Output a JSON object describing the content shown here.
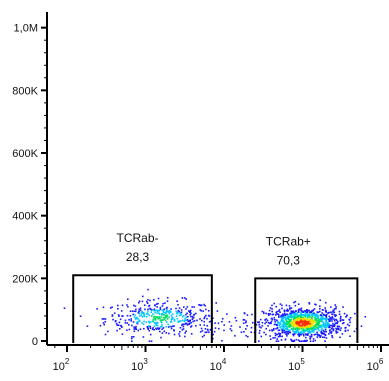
{
  "chart_data": {
    "type": "scatter",
    "title": "",
    "xlabel": "",
    "ylabel": "",
    "x_scale": "log",
    "xlim": [
      100,
      1000000
    ],
    "ylim": [
      0,
      1050000
    ],
    "x_ticks": [
      {
        "value": 100,
        "base": "10",
        "exp": "2"
      },
      {
        "value": 1000,
        "base": "10",
        "exp": "3"
      },
      {
        "value": 10000,
        "base": "10",
        "exp": "4"
      },
      {
        "value": 100000,
        "base": "10",
        "exp": "5"
      },
      {
        "value": 1000000,
        "base": "10",
        "exp": "6"
      }
    ],
    "y_ticks": [
      {
        "value": 0,
        "label": "0"
      },
      {
        "value": 200000,
        "label": "200K"
      },
      {
        "value": 400000,
        "label": "400K"
      },
      {
        "value": 600000,
        "label": "600K"
      },
      {
        "value": 800000,
        "label": "800K"
      },
      {
        "value": 1000000,
        "label": "1,0M"
      }
    ],
    "gates": [
      {
        "name": "TCRab-",
        "percent": "28,3",
        "x_range": [
          120,
          7000
        ],
        "y_range": [
          0,
          210000
        ]
      },
      {
        "name": "TCRab+",
        "percent": "70,3",
        "x_range": [
          25000,
          500000
        ],
        "y_range": [
          0,
          200000
        ]
      }
    ],
    "populations": [
      {
        "x_center": 1500,
        "x_spread_decades": 0.35,
        "y_center": 75000,
        "y_spread": 28000,
        "share": 0.283
      },
      {
        "x_center": 100000,
        "x_spread_decades": 0.25,
        "y_center": 60000,
        "y_spread": 25000,
        "share": 0.703
      }
    ],
    "density_colors": [
      "#1a1aff",
      "#00c8ff",
      "#00e060",
      "#f0e000",
      "#ff2a00"
    ],
    "grid": false,
    "legend": "none"
  }
}
